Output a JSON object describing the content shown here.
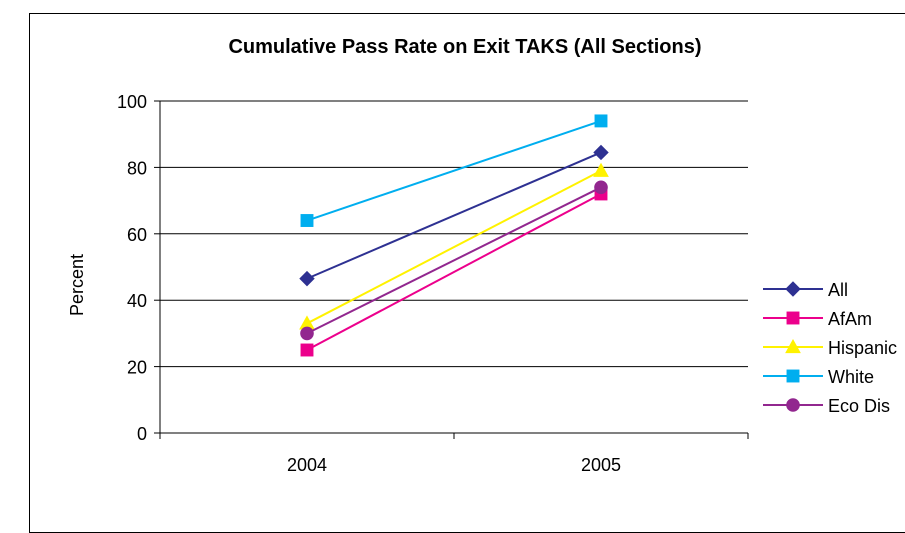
{
  "chart_data": {
    "type": "line",
    "title": "Cumulative Pass Rate on Exit TAKS (All Sections)",
    "xlabel": "",
    "ylabel": "Percent",
    "x": [
      "2004",
      "2005"
    ],
    "ylim": [
      0,
      100
    ],
    "yticks": [
      0,
      20,
      40,
      60,
      80,
      100
    ],
    "grid": true,
    "legend_position": "right",
    "series": [
      {
        "name": "All",
        "values": [
          46.5,
          84.5
        ],
        "color": "#2E3192",
        "marker": "diamond"
      },
      {
        "name": "AfAm",
        "values": [
          25,
          72
        ],
        "color": "#EC008C",
        "marker": "square"
      },
      {
        "name": "Hispanic",
        "values": [
          33,
          79
        ],
        "color": "#FFF200",
        "marker": "triangle"
      },
      {
        "name": "White",
        "values": [
          64,
          94
        ],
        "color": "#00AEEF",
        "marker": "square"
      },
      {
        "name": "Eco Dis",
        "values": [
          30,
          74
        ],
        "color": "#92278F",
        "marker": "circle"
      }
    ]
  }
}
